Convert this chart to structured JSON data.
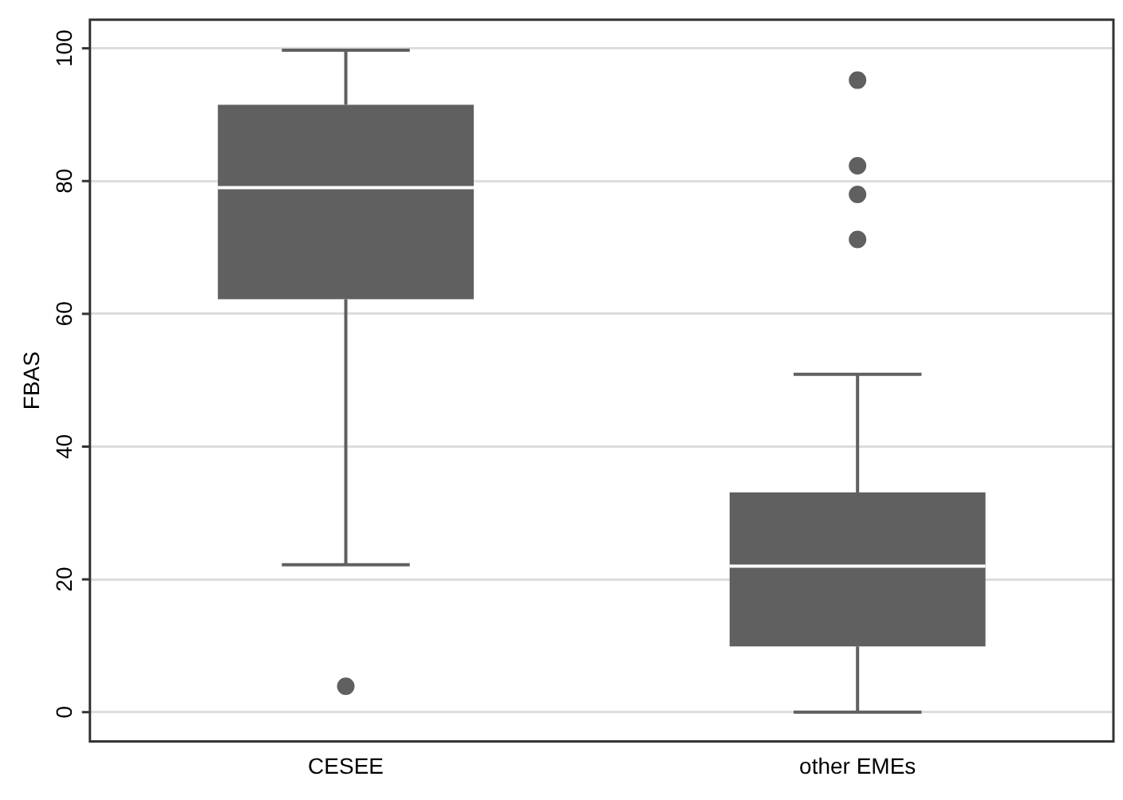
{
  "chart_data": {
    "type": "box",
    "ylabel": "FBAS",
    "categories": [
      "CESEE",
      "other EMEs"
    ],
    "color": "#606060",
    "boxes": [
      {
        "low": 22.2,
        "q1": 62.2,
        "median": 79.0,
        "q3": 91.5,
        "high": 99.7,
        "outliers": [
          3.9
        ]
      },
      {
        "low": 0,
        "q1": 9.9,
        "median": 22.0,
        "q3": 33.1,
        "high": 50.9,
        "outliers": [
          95.2,
          82.3,
          78.0,
          71.2
        ]
      }
    ],
    "ylim": [
      -4.4,
      104.3
    ],
    "yticks": [
      0,
      20,
      40,
      60,
      80,
      100
    ],
    "grid": "y",
    "legend": false,
    "marker": "circle"
  }
}
